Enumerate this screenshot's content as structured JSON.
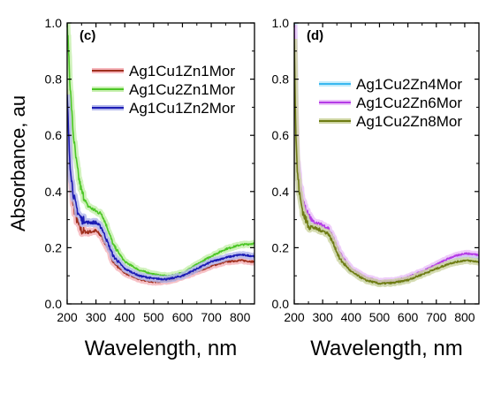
{
  "chart_data": [
    {
      "type": "line",
      "panel_label": "(c)",
      "xlabel": "Wavelength, nm",
      "ylabel": "Absorbance, au",
      "xlim": [
        200,
        850
      ],
      "ylim": [
        0.0,
        1.0
      ],
      "x_ticks": [
        200,
        300,
        400,
        500,
        600,
        700,
        800
      ],
      "y_ticks": [
        "0.0",
        "0.2",
        "0.4",
        "0.6",
        "0.8",
        "1.0"
      ],
      "legend_position": "top-right",
      "series": [
        {
          "name": "Ag1Cu1Zn1Mor",
          "color": "#a0301e",
          "shadow_color": "#f6b6bc",
          "x": [
            200,
            205,
            210,
            220,
            230,
            240,
            250,
            270,
            300,
            320,
            340,
            360,
            400,
            450,
            500,
            550,
            600,
            650,
            700,
            750,
            800,
            850
          ],
          "y": [
            0.78,
            0.62,
            0.48,
            0.36,
            0.31,
            0.28,
            0.26,
            0.255,
            0.26,
            0.24,
            0.2,
            0.15,
            0.11,
            0.087,
            0.078,
            0.082,
            0.095,
            0.115,
            0.135,
            0.15,
            0.155,
            0.15
          ]
        },
        {
          "name": "Ag1Cu2Zn1Mor",
          "color": "#4cc626",
          "shadow_color": "#c8f0b0",
          "x": [
            200,
            205,
            210,
            220,
            230,
            240,
            250,
            270,
            300,
            320,
            340,
            360,
            400,
            450,
            500,
            550,
            600,
            650,
            700,
            750,
            800,
            850
          ],
          "y": [
            1.0,
            0.9,
            0.78,
            0.62,
            0.52,
            0.45,
            0.4,
            0.35,
            0.33,
            0.32,
            0.27,
            0.21,
            0.15,
            0.12,
            0.105,
            0.098,
            0.11,
            0.14,
            0.17,
            0.195,
            0.21,
            0.215
          ]
        },
        {
          "name": "Ag1Cu1Zn2Mor",
          "color": "#1c1cb4",
          "shadow_color": "#b4b8ec",
          "x": [
            200,
            205,
            210,
            220,
            230,
            240,
            250,
            270,
            300,
            320,
            340,
            360,
            400,
            450,
            500,
            550,
            600,
            650,
            700,
            750,
            800,
            850
          ],
          "y": [
            0.74,
            0.6,
            0.5,
            0.4,
            0.35,
            0.32,
            0.3,
            0.29,
            0.29,
            0.27,
            0.22,
            0.17,
            0.125,
            0.1,
            0.09,
            0.088,
            0.1,
            0.125,
            0.15,
            0.165,
            0.175,
            0.17
          ]
        }
      ]
    },
    {
      "type": "line",
      "panel_label": "(d)",
      "xlabel": "Wavelength, nm",
      "ylabel": "",
      "xlim": [
        200,
        850
      ],
      "ylim": [
        0.0,
        1.0
      ],
      "x_ticks": [
        200,
        300,
        400,
        500,
        600,
        700,
        800
      ],
      "y_ticks": [
        "0.0",
        "0.2",
        "0.4",
        "0.6",
        "0.8",
        "1.0"
      ],
      "legend_position": "top-right",
      "series": [
        {
          "name": "Ag1Cu2Zn4Mor",
          "color": "#39b8f0",
          "shadow_color": "#c4ecfb",
          "x": [
            200,
            203,
            206,
            210,
            220,
            230,
            240,
            250,
            270,
            300,
            320,
            340,
            360,
            400,
            450,
            500,
            550,
            600,
            650,
            700,
            750,
            800,
            850
          ],
          "y": [
            1.0,
            0.8,
            0.62,
            0.5,
            0.4,
            0.35,
            0.32,
            0.3,
            0.28,
            0.27,
            0.26,
            0.22,
            0.17,
            0.12,
            0.09,
            0.075,
            0.078,
            0.09,
            0.11,
            0.135,
            0.155,
            0.17,
            0.165
          ]
        },
        {
          "name": "Ag1Cu2Zn6Mor",
          "color": "#b43ce6",
          "shadow_color": "#ecc4f8",
          "x": [
            200,
            203,
            206,
            210,
            220,
            230,
            240,
            250,
            270,
            300,
            320,
            340,
            360,
            400,
            450,
            500,
            550,
            600,
            650,
            700,
            750,
            800,
            850
          ],
          "y": [
            0.98,
            0.78,
            0.64,
            0.52,
            0.42,
            0.37,
            0.34,
            0.31,
            0.29,
            0.28,
            0.27,
            0.23,
            0.18,
            0.125,
            0.095,
            0.08,
            0.082,
            0.095,
            0.115,
            0.14,
            0.165,
            0.18,
            0.175
          ]
        },
        {
          "name": "Ag1Cu2Zn8Mor",
          "color": "#6e7c14",
          "shadow_color": "#cfd6a4",
          "x": [
            200,
            203,
            206,
            210,
            220,
            230,
            240,
            250,
            270,
            300,
            320,
            340,
            360,
            400,
            450,
            500,
            550,
            600,
            650,
            700,
            750,
            800,
            850
          ],
          "y": [
            0.95,
            0.74,
            0.6,
            0.48,
            0.38,
            0.33,
            0.3,
            0.28,
            0.27,
            0.26,
            0.25,
            0.21,
            0.16,
            0.115,
            0.085,
            0.072,
            0.075,
            0.085,
            0.105,
            0.125,
            0.145,
            0.155,
            0.15
          ]
        }
      ]
    }
  ]
}
